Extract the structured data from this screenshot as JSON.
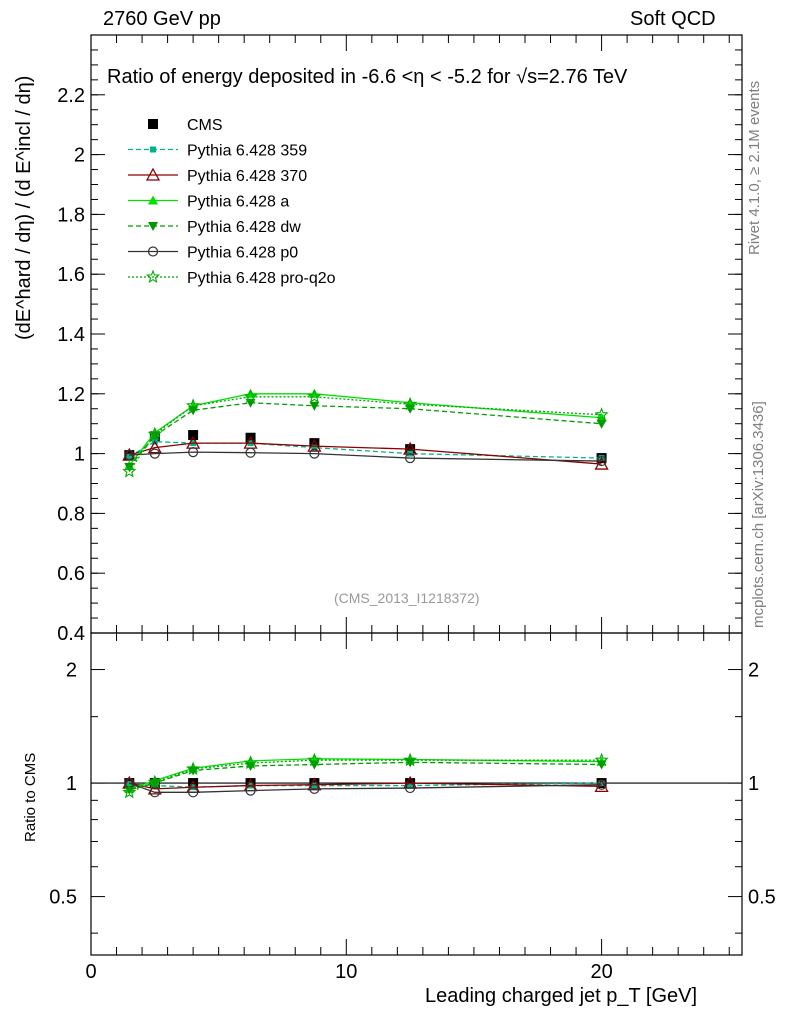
{
  "header": {
    "left": "2760 GeV pp",
    "right": "Soft QCD"
  },
  "side_text": {
    "rivet": "Rivet 4.1.0, ≥ 2.1M events",
    "mcplots": "mcplots.cern.ch [arXiv:1306.3436]"
  },
  "colors": {
    "cms": "#000000",
    "p359": "#00b38a",
    "p370": "#8b0000",
    "pa": "#00e000",
    "pdw": "#009900",
    "pp0": "#333333",
    "pq2o": "#00aa00",
    "ref_line": "#000000",
    "watermark": "#999999"
  },
  "chart_data": [
    {
      "type": "line",
      "title": "Ratio of energy deposited in -6.6 <η < -5.2 for √s=2.76 TeV",
      "ylabel": "(dE^hard / dη) / (d E^incl / dη)",
      "xlabel": "",
      "xlim": [
        0,
        25.5
      ],
      "ylim": [
        0.4,
        2.4
      ],
      "yticks": [
        0.4,
        0.6,
        0.8,
        1,
        1.2,
        1.4,
        1.6,
        1.8,
        2,
        2.2
      ],
      "ytick_labels": [
        "0.4",
        "0.6",
        "0.8",
        "1",
        "1.2",
        "1.4",
        "1.6",
        "1.8",
        "2",
        "2.2"
      ],
      "watermark": "(CMS_2013_I1218372)",
      "x": [
        1.5,
        2.5,
        4.0,
        6.25,
        8.75,
        12.5,
        20.0
      ],
      "series": [
        {
          "name": "CMS",
          "values": [
            0.995,
            1.058,
            1.062,
            1.053,
            1.035,
            1.015,
            0.985
          ]
        },
        {
          "name": "Pythia 6.428 359",
          "values": [
            0.99,
            1.04,
            1.035,
            1.035,
            1.02,
            1.0,
            0.985
          ]
        },
        {
          "name": "Pythia 6.428 370",
          "values": [
            0.995,
            1.02,
            1.035,
            1.035,
            1.025,
            1.015,
            0.965
          ]
        },
        {
          "name": "Pythia 6.428 a",
          "values": [
            0.96,
            1.07,
            1.16,
            1.2,
            1.2,
            1.17,
            1.12
          ]
        },
        {
          "name": "Pythia 6.428 dw",
          "values": [
            0.955,
            1.06,
            1.145,
            1.17,
            1.16,
            1.15,
            1.1
          ]
        },
        {
          "name": "Pythia 6.428 p0",
          "values": [
            0.995,
            1.0,
            1.005,
            1.003,
            1.0,
            0.985,
            0.975
          ]
        },
        {
          "name": "Pythia 6.428 pro-q2o",
          "values": [
            0.94,
            1.065,
            1.16,
            1.19,
            1.19,
            1.165,
            1.13
          ]
        }
      ]
    },
    {
      "type": "line",
      "title": "",
      "ylabel": "Ratio to CMS",
      "xlabel": "Leading charged jet p_T [GeV]",
      "xlim": [
        0,
        25.5
      ],
      "ylim": [
        0.35,
        2.5
      ],
      "yticks": [
        0.5,
        1,
        2
      ],
      "ytick_labels": [
        "0.5",
        "1",
        "2"
      ],
      "xticks": [
        0,
        10,
        20
      ],
      "xtick_labels": [
        "0",
        "10",
        "20"
      ],
      "x": [
        1.5,
        2.5,
        4.0,
        6.25,
        8.75,
        12.5,
        20.0
      ],
      "series": [
        {
          "name": "CMS",
          "values": [
            1.0,
            1.0,
            1.0,
            1.0,
            1.0,
            1.0,
            1.0
          ]
        },
        {
          "name": "Pythia 6.428 359",
          "values": [
            0.995,
            0.985,
            0.975,
            0.985,
            0.985,
            0.985,
            1.0
          ]
        },
        {
          "name": "Pythia 6.428 370",
          "values": [
            1.0,
            0.965,
            0.975,
            0.985,
            0.99,
            1.0,
            0.98
          ]
        },
        {
          "name": "Pythia 6.428 a",
          "values": [
            0.965,
            1.015,
            1.095,
            1.145,
            1.16,
            1.155,
            1.14
          ]
        },
        {
          "name": "Pythia 6.428 dw",
          "values": [
            0.96,
            1.0,
            1.08,
            1.11,
            1.12,
            1.135,
            1.12
          ]
        },
        {
          "name": "Pythia 6.428 p0",
          "values": [
            1.0,
            0.945,
            0.945,
            0.955,
            0.965,
            0.97,
            0.99
          ]
        },
        {
          "name": "Pythia 6.428 pro-q2o",
          "values": [
            0.945,
            1.005,
            1.09,
            1.13,
            1.15,
            1.15,
            1.15
          ]
        }
      ]
    }
  ]
}
